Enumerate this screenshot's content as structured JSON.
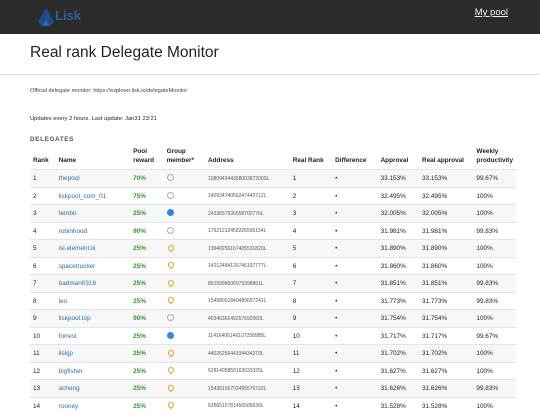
{
  "header": {
    "logo_text": "Lisk",
    "my_pool": "My pool"
  },
  "page": {
    "title": "Real rank Delegate Monitor",
    "official": "Official delegate monitor: https://explorer.lisk.io/delegateMonitor",
    "updates": "Updates every 2 hours. Last update: Jan31 23:21",
    "section": "DELEGATES"
  },
  "table": {
    "headers": {
      "rank": "Rank",
      "name": "Name",
      "pool_reward": "Pool reward",
      "group_member": "Group member*",
      "address": "Address",
      "real_rank": "Real Rank",
      "difference": "Difference",
      "approval": "Approval",
      "real_approval": "Real approval",
      "weekly": "Weekly productivity"
    },
    "colors": {
      "green": "#2e9b2e",
      "orange": "#e2a11d",
      "blue": "#2f87e6"
    },
    "rows": [
      {
        "rank": "1",
        "name": "thepool",
        "reward": "70%",
        "reward_color": "green",
        "member": "empty",
        "address": "10809494436800387200SL",
        "real_rank": "1",
        "difference": "•",
        "approval": "33.153%",
        "real_approval": "33.153%",
        "weekly": "99.67%"
      },
      {
        "rank": "2",
        "name": "liskpool_com_01",
        "reward": "75%",
        "reward_color": "green",
        "member": "empty",
        "address": "14093474056247442712L",
        "real_rank": "2",
        "difference": "•",
        "approval": "32.495%",
        "real_approval": "32.495%",
        "weekly": "100%"
      },
      {
        "rank": "3",
        "name": "tembo",
        "reward": "25%",
        "reward_color": "green",
        "member": "blue",
        "address": "2433657930558702776L",
        "real_rank": "3",
        "difference": "•",
        "approval": "32.005%",
        "real_approval": "32.005%",
        "weekly": "100%"
      },
      {
        "rank": "4",
        "name": "robinhood",
        "reward": "90%",
        "reward_color": "green",
        "member": "empty",
        "address": "17621212458226596154L",
        "real_rank": "4",
        "difference": "•",
        "approval": "31.981%",
        "real_approval": "31.981%",
        "weekly": "99.83%"
      },
      {
        "rank": "5",
        "name": "isi.element.iii",
        "reward": "25%",
        "reward_color": "green",
        "member": "pin",
        "address": "13940256167405531820L",
        "real_rank": "5",
        "difference": "•",
        "approval": "31.890%",
        "real_approval": "31.890%",
        "weekly": "100%"
      },
      {
        "rank": "6",
        "name": "spacetrucker",
        "reward": "25%",
        "reward_color": "green",
        "member": "pin",
        "address": "14212484126746197777L",
        "real_rank": "6",
        "difference": "•",
        "approval": "31.860%",
        "real_approval": "31.860%",
        "weekly": "100%"
      },
      {
        "rank": "7",
        "name": "badman0316",
        "reward": "25%",
        "reward_color": "green",
        "member": "pin",
        "address": "8015998606079398861L",
        "real_rank": "7",
        "difference": "•",
        "approval": "31.851%",
        "real_approval": "31.851%",
        "weekly": "99.83%"
      },
      {
        "rank": "8",
        "name": "leo",
        "reward": "25%",
        "reward_color": "green",
        "member": "pin",
        "address": "15458001840489657241L",
        "real_rank": "8",
        "difference": "•",
        "approval": "31.773%",
        "real_approval": "31.773%",
        "weekly": "99.83%"
      },
      {
        "rank": "9",
        "name": "liskpool.top",
        "reward": "90%",
        "reward_color": "green",
        "member": "empty",
        "address": "4034636149257692060L",
        "real_rank": "9",
        "difference": "•",
        "approval": "31.754%",
        "real_approval": "31.754%",
        "weekly": "100%"
      },
      {
        "rank": "10",
        "name": "forrest",
        "reward": "25%",
        "reward_color": "green",
        "member": "blue",
        "address": "11416406146107258985L",
        "real_rank": "10",
        "difference": "•",
        "approval": "31.717%",
        "real_approval": "31.717%",
        "weekly": "99.67%"
      },
      {
        "rank": "11",
        "name": "liskjp",
        "reward": "25%",
        "reward_color": "green",
        "member": "pin",
        "address": "4402625644334434270L",
        "real_rank": "11",
        "difference": "•",
        "approval": "31.702%",
        "real_approval": "31.702%",
        "weekly": "100%"
      },
      {
        "rank": "12",
        "name": "bigfisher",
        "reward": "25%",
        "reward_color": "green",
        "member": "pin",
        "address": "6281405850163033335L",
        "real_rank": "12",
        "difference": "•",
        "approval": "31.627%",
        "real_approval": "31.627%",
        "weekly": "100%"
      },
      {
        "rank": "13",
        "name": "acheng",
        "reward": "25%",
        "reward_color": "green",
        "member": "pin",
        "address": "15435156702495576722L",
        "real_rank": "13",
        "difference": "•",
        "approval": "31.626%",
        "real_approval": "31.626%",
        "weekly": "99.83%"
      },
      {
        "rank": "14",
        "name": "rooney",
        "reward": "25%",
        "reward_color": "green",
        "member": "pin",
        "address": "6356515781456505636L",
        "real_rank": "14",
        "difference": "•",
        "approval": "31.528%",
        "real_approval": "31.528%",
        "weekly": "100%"
      }
    ]
  }
}
